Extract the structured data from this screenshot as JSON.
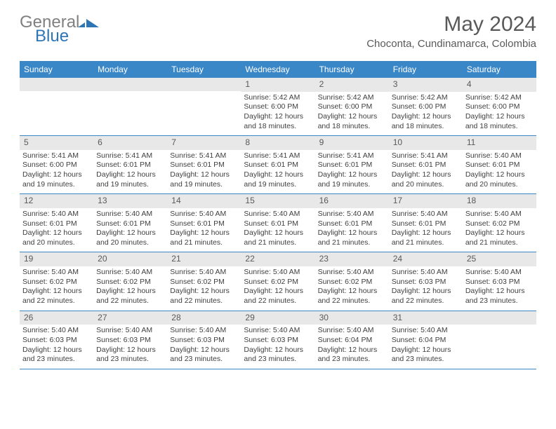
{
  "logo": {
    "word1": "General",
    "word2": "Blue"
  },
  "title": "May 2024",
  "location": "Choconta, Cundinamarca, Colombia",
  "colors": {
    "header_bg": "#3a87c8",
    "accent": "#2e75b6",
    "text": "#404040",
    "muted_bg": "#e8e8e8"
  },
  "daysOfWeek": [
    "Sunday",
    "Monday",
    "Tuesday",
    "Wednesday",
    "Thursday",
    "Friday",
    "Saturday"
  ],
  "weeks": [
    [
      {
        "n": "",
        "sr": "",
        "ss": "",
        "dl": ""
      },
      {
        "n": "",
        "sr": "",
        "ss": "",
        "dl": ""
      },
      {
        "n": "",
        "sr": "",
        "ss": "",
        "dl": ""
      },
      {
        "n": "1",
        "sr": "5:42 AM",
        "ss": "6:00 PM",
        "dl": "12 hours and 18 minutes."
      },
      {
        "n": "2",
        "sr": "5:42 AM",
        "ss": "6:00 PM",
        "dl": "12 hours and 18 minutes."
      },
      {
        "n": "3",
        "sr": "5:42 AM",
        "ss": "6:00 PM",
        "dl": "12 hours and 18 minutes."
      },
      {
        "n": "4",
        "sr": "5:42 AM",
        "ss": "6:00 PM",
        "dl": "12 hours and 18 minutes."
      }
    ],
    [
      {
        "n": "5",
        "sr": "5:41 AM",
        "ss": "6:00 PM",
        "dl": "12 hours and 19 minutes."
      },
      {
        "n": "6",
        "sr": "5:41 AM",
        "ss": "6:01 PM",
        "dl": "12 hours and 19 minutes."
      },
      {
        "n": "7",
        "sr": "5:41 AM",
        "ss": "6:01 PM",
        "dl": "12 hours and 19 minutes."
      },
      {
        "n": "8",
        "sr": "5:41 AM",
        "ss": "6:01 PM",
        "dl": "12 hours and 19 minutes."
      },
      {
        "n": "9",
        "sr": "5:41 AM",
        "ss": "6:01 PM",
        "dl": "12 hours and 19 minutes."
      },
      {
        "n": "10",
        "sr": "5:41 AM",
        "ss": "6:01 PM",
        "dl": "12 hours and 20 minutes."
      },
      {
        "n": "11",
        "sr": "5:40 AM",
        "ss": "6:01 PM",
        "dl": "12 hours and 20 minutes."
      }
    ],
    [
      {
        "n": "12",
        "sr": "5:40 AM",
        "ss": "6:01 PM",
        "dl": "12 hours and 20 minutes."
      },
      {
        "n": "13",
        "sr": "5:40 AM",
        "ss": "6:01 PM",
        "dl": "12 hours and 20 minutes."
      },
      {
        "n": "14",
        "sr": "5:40 AM",
        "ss": "6:01 PM",
        "dl": "12 hours and 21 minutes."
      },
      {
        "n": "15",
        "sr": "5:40 AM",
        "ss": "6:01 PM",
        "dl": "12 hours and 21 minutes."
      },
      {
        "n": "16",
        "sr": "5:40 AM",
        "ss": "6:01 PM",
        "dl": "12 hours and 21 minutes."
      },
      {
        "n": "17",
        "sr": "5:40 AM",
        "ss": "6:01 PM",
        "dl": "12 hours and 21 minutes."
      },
      {
        "n": "18",
        "sr": "5:40 AM",
        "ss": "6:02 PM",
        "dl": "12 hours and 21 minutes."
      }
    ],
    [
      {
        "n": "19",
        "sr": "5:40 AM",
        "ss": "6:02 PM",
        "dl": "12 hours and 22 minutes."
      },
      {
        "n": "20",
        "sr": "5:40 AM",
        "ss": "6:02 PM",
        "dl": "12 hours and 22 minutes."
      },
      {
        "n": "21",
        "sr": "5:40 AM",
        "ss": "6:02 PM",
        "dl": "12 hours and 22 minutes."
      },
      {
        "n": "22",
        "sr": "5:40 AM",
        "ss": "6:02 PM",
        "dl": "12 hours and 22 minutes."
      },
      {
        "n": "23",
        "sr": "5:40 AM",
        "ss": "6:02 PM",
        "dl": "12 hours and 22 minutes."
      },
      {
        "n": "24",
        "sr": "5:40 AM",
        "ss": "6:03 PM",
        "dl": "12 hours and 22 minutes."
      },
      {
        "n": "25",
        "sr": "5:40 AM",
        "ss": "6:03 PM",
        "dl": "12 hours and 23 minutes."
      }
    ],
    [
      {
        "n": "26",
        "sr": "5:40 AM",
        "ss": "6:03 PM",
        "dl": "12 hours and 23 minutes."
      },
      {
        "n": "27",
        "sr": "5:40 AM",
        "ss": "6:03 PM",
        "dl": "12 hours and 23 minutes."
      },
      {
        "n": "28",
        "sr": "5:40 AM",
        "ss": "6:03 PM",
        "dl": "12 hours and 23 minutes."
      },
      {
        "n": "29",
        "sr": "5:40 AM",
        "ss": "6:03 PM",
        "dl": "12 hours and 23 minutes."
      },
      {
        "n": "30",
        "sr": "5:40 AM",
        "ss": "6:04 PM",
        "dl": "12 hours and 23 minutes."
      },
      {
        "n": "31",
        "sr": "5:40 AM",
        "ss": "6:04 PM",
        "dl": "12 hours and 23 minutes."
      },
      {
        "n": "",
        "sr": "",
        "ss": "",
        "dl": ""
      }
    ]
  ],
  "labels": {
    "sunrise": "Sunrise:",
    "sunset": "Sunset:",
    "daylight": "Daylight:"
  }
}
